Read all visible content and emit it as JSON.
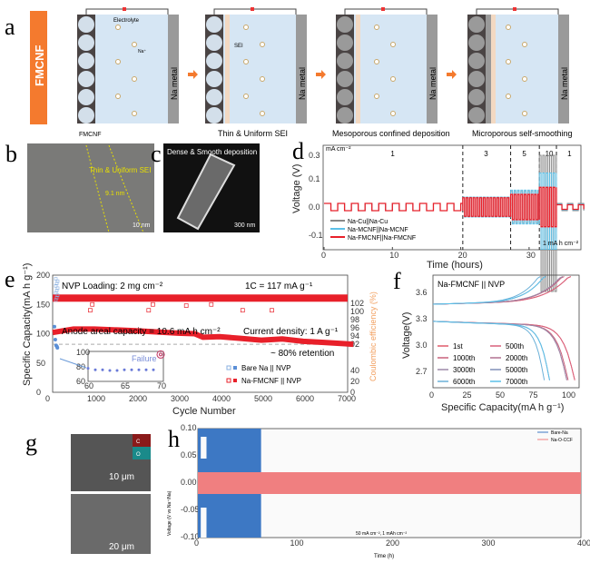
{
  "panel_labels": {
    "a": "a",
    "b": "b",
    "c": "c",
    "d": "d",
    "e": "e",
    "f": "f",
    "g": "g",
    "h": "h"
  },
  "schematic": {
    "side_label": "FMCNF",
    "electrolyte": "Electrolyte",
    "na_ion": "Na⁺",
    "sei": "SEI",
    "na_metal": "Na metal",
    "captions": [
      "FMCNF",
      "Thin & Uniform SEI",
      "Mesoporous confined deposition",
      "Microporous self-smoothing"
    ],
    "colors": {
      "accent": "#f47a2e",
      "electrolyte": "#d6e6f4",
      "host": "#4a4444",
      "sei": "#f3d9c2",
      "metal": "#9a9a9a"
    }
  },
  "tem": {
    "label": "Thin & Uniform SEI",
    "thickness": "9.1 nm",
    "scale": "10 nm"
  },
  "sem": {
    "label": "Dense & Smooth deposition",
    "scale": "300 nm"
  },
  "sem_g": {
    "scale_top": "10 μm",
    "scale_bottom": "20 μm",
    "map_c": "C",
    "map_o": "O"
  },
  "chart_data": [
    {
      "id": "d",
      "type": "line",
      "xlabel": "Time (hours)",
      "ylabel": "Voltage (V)",
      "xlim": [
        0,
        38
      ],
      "xticks": [
        0,
        10,
        20,
        30
      ],
      "yticks": [
        0.3,
        0.1,
        0.0,
        -0.1
      ],
      "unit_label": "mA cm⁻²",
      "capacity_label": "1 mA h cm⁻²",
      "segments": [
        {
          "current": "1",
          "start": 0,
          "end": 20.3
        },
        {
          "current": "3",
          "start": 20.3,
          "end": 27.3
        },
        {
          "current": "5",
          "start": 27.3,
          "end": 31.5
        },
        {
          "current": "10",
          "start": 31.5,
          "end": 34
        },
        {
          "current": "1",
          "start": 34,
          "end": 38
        }
      ],
      "series": [
        {
          "name": "Na-Cu||Na-Cu",
          "color": "#888888",
          "amplitudes": [
            0.013,
            0.035,
            0.055,
            0.3,
            0.013
          ]
        },
        {
          "name": "Na-MCNF||Na-MCNF",
          "color": "#5bc0e8",
          "amplitudes": [
            0.013,
            0.035,
            0.06,
            0.15,
            0.01
          ]
        },
        {
          "name": "Na-FMCNF||Na-FMCNF",
          "color": "#e8202a",
          "amplitudes": [
            0.013,
            0.033,
            0.045,
            0.07,
            0.008
          ]
        }
      ]
    },
    {
      "id": "e",
      "type": "scatter",
      "xlabel": "Cycle Number",
      "ylabel": "Specific Capacity(mA h g⁻¹)",
      "y2label": "Coulombic efficiency (%)",
      "xlim": [
        0,
        7200
      ],
      "ylim": [
        0,
        200
      ],
      "xticks": [
        0,
        1000,
        2000,
        3000,
        4000,
        5000,
        6000,
        7000
      ],
      "yticks": [
        0,
        50,
        100,
        150,
        200
      ],
      "y2ticks": [
        "0",
        "20",
        "40",
        "92",
        "94",
        "96",
        "98",
        "100",
        "102"
      ],
      "annotations": [
        "NVP Loading: 2 mg cm⁻²",
        "1C = 117 mA g⁻¹",
        "Anode areal capacity = 10.6 mA h cm⁻²",
        "Current density: 1 A g⁻¹",
        "~ 80% retention"
      ],
      "retention_line": 82,
      "series": [
        {
          "name": "Bare Na || NVP",
          "color": "#5b8fd6",
          "capacity": [
            [
              0,
              112
            ],
            [
              20,
              90
            ],
            [
              40,
              80
            ],
            [
              60,
              78
            ],
            [
              70,
              76
            ]
          ]
        },
        {
          "name": "Na-FMCNF || NVP",
          "color": "#e8202a",
          "capacity": [
            [
              0,
              102
            ],
            [
              500,
              108
            ],
            [
              1000,
              108
            ],
            [
              2000,
              105
            ],
            [
              3000,
              101
            ],
            [
              3400,
              100
            ],
            [
              3600,
              94
            ],
            [
              4000,
              95
            ],
            [
              4500,
              92
            ],
            [
              5000,
              89
            ],
            [
              5500,
              91
            ],
            [
              6000,
              87
            ],
            [
              6500,
              85
            ],
            [
              7200,
              82
            ]
          ],
          "ce_outliers": [
            [
              900,
              140
            ],
            [
              950,
              150
            ],
            [
              2300,
              140
            ],
            [
              2400,
              150
            ],
            [
              3200,
              148
            ],
            [
              3800,
              150
            ],
            [
              4550,
              140
            ],
            [
              5250,
              140
            ]
          ]
        }
      ],
      "inset": {
        "xticks": [
          60,
          65,
          70
        ],
        "yticks": [
          60,
          80,
          100
        ],
        "label": "Failure",
        "values": [
          [
            60,
            78
          ],
          [
            61,
            76
          ],
          [
            62,
            76
          ],
          [
            63,
            75
          ],
          [
            64,
            75
          ],
          [
            65,
            76
          ],
          [
            66,
            76
          ],
          [
            67,
            76
          ],
          [
            68,
            76
          ],
          [
            69,
            76
          ],
          [
            70,
            97
          ]
        ]
      }
    },
    {
      "id": "f",
      "type": "line",
      "title": "Na-FMCNF || NVP",
      "xlabel": "Specific Capacity(mA h g⁻¹)",
      "ylabel": "Voltage(V)",
      "xlim": [
        0,
        110
      ],
      "ylim": [
        2.55,
        3.78
      ],
      "xticks": [
        0,
        25,
        50,
        75,
        100
      ],
      "yticks": [
        2.7,
        3.0,
        3.3,
        3.6
      ],
      "series": [
        {
          "name": "1st",
          "color": "#e05a6a",
          "capacity": 107
        },
        {
          "name": "500th",
          "color": "#d9607a",
          "capacity": 107
        },
        {
          "name": "1000th",
          "color": "#c8607a",
          "capacity": 102
        },
        {
          "name": "2000th",
          "color": "#b07090",
          "capacity": 101
        },
        {
          "name": "3000th",
          "color": "#9c88a8",
          "capacity": 101
        },
        {
          "name": "5000th",
          "color": "#8090b8",
          "capacity": 88
        },
        {
          "name": "6000th",
          "color": "#6ab0d8",
          "capacity": 84
        },
        {
          "name": "7000th",
          "color": "#5ac0e8",
          "capacity": 88
        }
      ]
    },
    {
      "id": "h",
      "type": "area",
      "xlabel": "Time (h)",
      "ylabel": "Voltage (V vs Na⁺/Na)",
      "xlim": [
        0,
        400
      ],
      "ylim": [
        -0.1,
        0.1
      ],
      "xticks": [
        0,
        100,
        200,
        300,
        400
      ],
      "yticks": [
        "0.10",
        "0.05",
        "0.00",
        "-0.05",
        "-0.10"
      ],
      "annotation": "50 mA cm⁻², 1 mAh cm⁻²",
      "series": [
        {
          "name": "Bare-Na",
          "color": "#3d78c4",
          "end_time": 66,
          "amplitude": 0.1
        },
        {
          "name": "Na-O-CCF",
          "color": "#f07f80",
          "end_time": 400,
          "amplitude": 0.02
        }
      ]
    }
  ]
}
